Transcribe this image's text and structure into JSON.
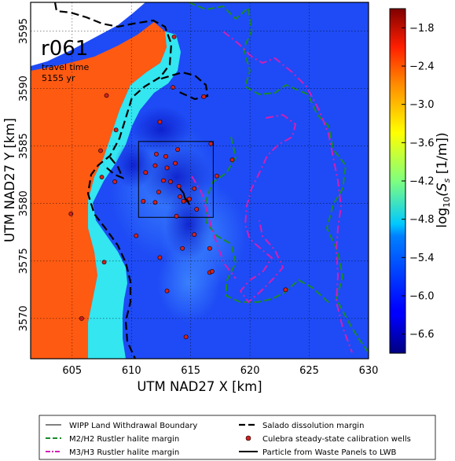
{
  "run_label": "r061",
  "travel_time_label": "travel time",
  "travel_time_value": "5155 yr",
  "axes": {
    "xlabel": "UTM NAD27 X [km]",
    "ylabel": "UTM NAD27 Y [km]",
    "xlim": [
      601.5,
      630
    ],
    "ylim": [
      3566.5,
      3597.5
    ],
    "x_ticks": [
      "605",
      "610",
      "615",
      "620",
      "625",
      "630"
    ],
    "y_ticks": [
      "3570",
      "3575",
      "3580",
      "3585",
      "3590",
      "3595"
    ],
    "grid": true
  },
  "colorbar": {
    "label": "log10(Ss [1/m])",
    "label_main": "log",
    "label_sub": "10",
    "label_rest": "(S",
    "label_sub2": "s",
    "label_units": " [1/m])",
    "ticks": [
      "−1.8",
      "−2.4",
      "−3.0",
      "−3.6",
      "−4.2",
      "−4.8",
      "−5.4",
      "−6.0",
      "−6.6"
    ],
    "tick_values": [
      -1.8,
      -2.4,
      -3.0,
      -3.6,
      -4.2,
      -4.8,
      -5.4,
      -6.0,
      -6.6
    ],
    "range": [
      -6.9,
      -1.5
    ],
    "colormap": "jet"
  },
  "legend": {
    "wipp": "WIPP Land Withdrawal Boundary",
    "m2h2": "M2/H2 Rustler halite margin",
    "m3h3": "M3/H3 Rustler halite margin",
    "salado": "Salado dissolution margin",
    "wells": "Culebra steady-state calibration wells",
    "particle": "Particle from Waste Panels to LWB"
  },
  "colors": {
    "field_low": "#1a3cf0",
    "field_mid": "#2a5cff",
    "dark_patch": "#0b20d8",
    "cyan": "#33e6f0",
    "orange": "#ff5a12",
    "salado": "#000000",
    "m2h2": "#1a8a2a",
    "m3h3": "#d21fb6",
    "well": "#d42020",
    "wipp": "#000000"
  },
  "chart_data": {
    "type": "map",
    "title": "r061",
    "xlabel": "UTM NAD27 X [km]",
    "ylabel": "UTM NAD27 Y [km]",
    "xlim": [
      601.5,
      630
    ],
    "ylim": [
      3566.5,
      3597.5
    ],
    "wipp_boundary": {
      "x": [
        610.6,
        616.9
      ],
      "y": [
        3578.8,
        3585.4
      ]
    },
    "colorbar_range": [
      -6.9,
      -1.5
    ],
    "wells": [
      [
        605.8,
        3570.0
      ],
      [
        604.9,
        3579.1
      ],
      [
        607.5,
        3582.3
      ],
      [
        607.7,
        3574.9
      ],
      [
        607.9,
        3589.4
      ],
      [
        608.7,
        3586.4
      ],
      [
        607.4,
        3584.6
      ],
      [
        608.6,
        3581.9
      ],
      [
        610.4,
        3577.2
      ],
      [
        611.0,
        3580.2
      ],
      [
        612.0,
        3580.1
      ],
      [
        611.2,
        3582.7
      ],
      [
        612.0,
        3583.3
      ],
      [
        612.7,
        3582.0
      ],
      [
        612.3,
        3581.0
      ],
      [
        612.1,
        3584.3
      ],
      [
        612.9,
        3584.1
      ],
      [
        613.0,
        3583.1
      ],
      [
        613.3,
        3581.9
      ],
      [
        613.7,
        3583.5
      ],
      [
        613.9,
        3584.7
      ],
      [
        614.0,
        3581.5
      ],
      [
        614.1,
        3580.6
      ],
      [
        614.4,
        3580.2
      ],
      [
        614.7,
        3580.3
      ],
      [
        614.9,
        3580.4
      ],
      [
        615.3,
        3581.3
      ],
      [
        615.5,
        3579.5
      ],
      [
        615.3,
        3577.3
      ],
      [
        614.3,
        3576.1
      ],
      [
        612.4,
        3575.3
      ],
      [
        613.0,
        3572.4
      ],
      [
        613.8,
        3578.9
      ],
      [
        612.4,
        3587.1
      ],
      [
        613.5,
        3590.1
      ],
      [
        613.6,
        3594.5
      ],
      [
        616.1,
        3589.3
      ],
      [
        616.7,
        3585.2
      ],
      [
        618.5,
        3583.8
      ],
      [
        617.2,
        3582.4
      ],
      [
        616.6,
        3576.1
      ],
      [
        616.6,
        3574.0
      ],
      [
        623.0,
        3572.5
      ],
      [
        614.6,
        3568.4
      ],
      [
        616.8,
        3574.1
      ]
    ],
    "particle_path": {
      "x": [
        614.1,
        614.4,
        614.5,
        614.8,
        614.9
      ],
      "y": [
        3581.3,
        3580.9,
        3580.5,
        3580.1,
        3579.9
      ]
    }
  }
}
